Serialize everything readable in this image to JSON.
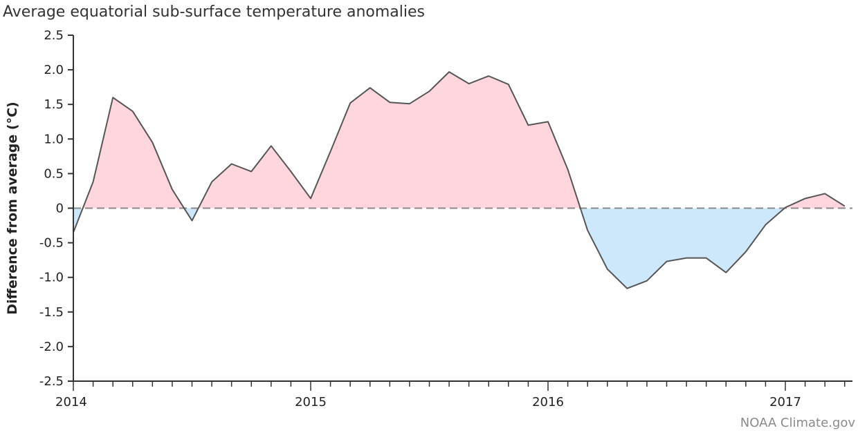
{
  "chart_data": {
    "type": "area",
    "title": "Average equatorial sub-surface temperature anomalies",
    "ylabel": "Difference from average (°C)",
    "xlabel": "",
    "credit": "NOAA Climate.gov",
    "ylim": [
      -2.5,
      2.5
    ],
    "y_ticks": [
      "2.5",
      "2.0",
      "1.5",
      "1.0",
      "0.5",
      "0",
      "-0.5",
      "-1.0",
      "-1.5",
      "-2.0",
      "-2.5"
    ],
    "y_tick_values": [
      2.5,
      2.0,
      1.5,
      1.0,
      0.5,
      0,
      -0.5,
      -1.0,
      -1.5,
      -2.0,
      -2.5
    ],
    "x_ticks": [
      "2014",
      "2015",
      "2016",
      "2017"
    ],
    "x_tick_values": [
      2014,
      2015,
      2016,
      2017
    ],
    "xlim": [
      2014,
      2017.333
    ],
    "grid": false,
    "baseline": 0,
    "colors": {
      "positive_fill": "#ffd6de",
      "negative_fill": "#cde7fb",
      "line": "#555555",
      "baseline": "#8a8a8a"
    },
    "series": [
      {
        "x": [
          "2014-01",
          "2014-02",
          "2014-03",
          "2014-04",
          "2014-05",
          "2014-06",
          "2014-07",
          "2014-08",
          "2014-09",
          "2014-10",
          "2014-11",
          "2014-12",
          "2015-01",
          "2015-02",
          "2015-03",
          "2015-04",
          "2015-05",
          "2015-06",
          "2015-07",
          "2015-08",
          "2015-09",
          "2015-10",
          "2015-11",
          "2015-12",
          "2016-01",
          "2016-02",
          "2016-03",
          "2016-04",
          "2016-05",
          "2016-06",
          "2016-07",
          "2016-08",
          "2016-09",
          "2016-10",
          "2016-11",
          "2016-12",
          "2017-01",
          "2017-02",
          "2017-03",
          "2017-04"
        ],
        "values": [
          -0.35,
          0.38,
          1.6,
          1.4,
          0.95,
          0.27,
          -0.18,
          0.38,
          0.64,
          0.53,
          0.9,
          0.53,
          0.14,
          0.82,
          1.52,
          1.74,
          1.53,
          1.51,
          1.69,
          1.97,
          1.8,
          1.91,
          1.79,
          1.2,
          1.25,
          0.56,
          -0.32,
          -0.88,
          -1.16,
          -1.05,
          -0.77,
          -0.72,
          -0.72,
          -0.93,
          -0.63,
          -0.24,
          0.01,
          0.14,
          0.21,
          0.03
        ]
      }
    ]
  }
}
